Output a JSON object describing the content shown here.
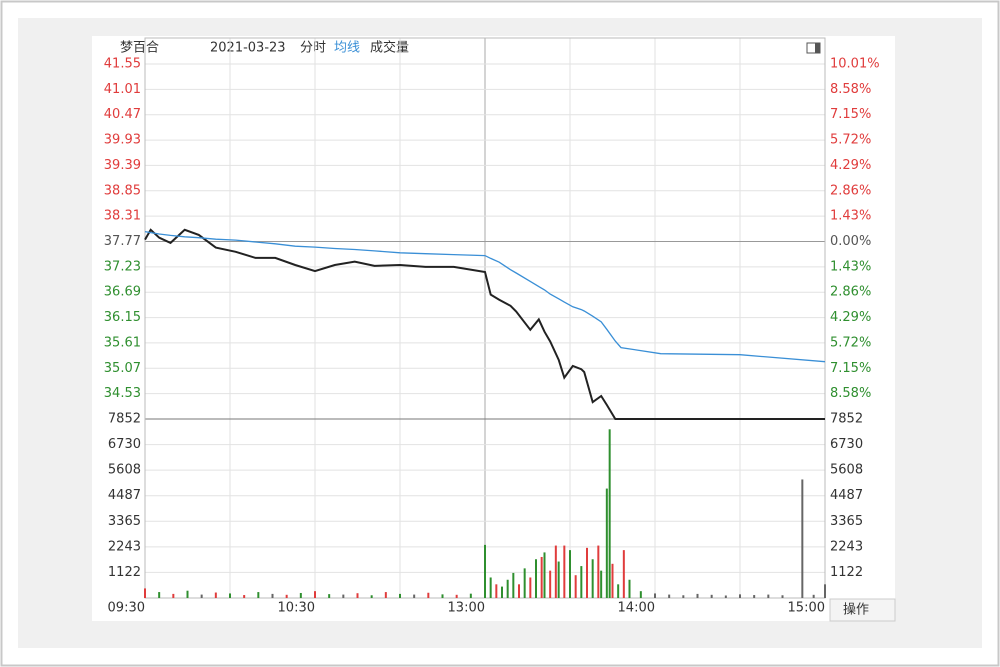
{
  "chart_data": [
    {
      "type": "line",
      "title": "梦百合",
      "date": "2021-03-23",
      "period": "分时",
      "x": [
        0,
        2,
        5,
        9,
        14,
        19,
        25,
        32,
        39,
        46,
        53,
        60,
        67,
        74,
        81,
        90,
        99,
        109,
        120,
        122,
        125,
        129,
        131,
        136,
        139,
        141,
        143,
        146,
        148,
        151,
        154,
        155,
        158,
        161,
        163,
        166,
        168,
        182,
        210,
        240
      ],
      "series": [
        {
          "color": "#222222",
          "values": [
            37.81,
            38.02,
            37.85,
            37.74,
            38.02,
            37.91,
            37.64,
            37.55,
            37.42,
            37.42,
            37.27,
            37.14,
            37.27,
            37.34,
            37.25,
            37.27,
            37.23,
            37.23,
            37.12,
            36.64,
            36.53,
            36.4,
            36.28,
            35.89,
            36.11,
            35.85,
            35.64,
            35.25,
            34.87,
            35.12,
            35.05,
            34.99,
            34.35,
            34.48,
            34.29,
            33.99,
            33.99,
            33.99,
            33.99,
            33.99
          ]
        },
        {
          "name": "均线",
          "color": "#3a8fd6",
          "values": [
            37.98,
            37.96,
            37.93,
            37.9,
            37.87,
            37.85,
            37.82,
            37.8,
            37.76,
            37.72,
            37.67,
            37.65,
            37.62,
            37.6,
            37.57,
            37.53,
            37.51,
            37.49,
            37.47,
            37.41,
            37.33,
            37.17,
            37.1,
            36.92,
            36.81,
            36.74,
            36.65,
            36.55,
            36.48,
            36.38,
            36.32,
            36.29,
            36.18,
            36.06,
            35.9,
            35.65,
            35.51,
            35.38,
            35.36,
            35.21
          ]
        }
      ],
      "xlim": [
        0,
        240
      ],
      "xticks": [
        {
          "value": 0,
          "label": "09:30"
        },
        {
          "value": 30,
          "label": null
        },
        {
          "value": 60,
          "label": "10:30"
        },
        {
          "value": 90,
          "label": null
        },
        {
          "value": 120,
          "label": "13:00"
        },
        {
          "value": 150,
          "label": null
        },
        {
          "value": 180,
          "label": "14:00"
        },
        {
          "value": 210,
          "label": null
        },
        {
          "value": 240,
          "label": "15:00"
        }
      ],
      "ylim": [
        33.99,
        41.55
      ],
      "yticks": [
        41.55,
        41.01,
        40.47,
        39.93,
        39.39,
        38.85,
        38.31,
        37.77,
        37.23,
        36.69,
        36.15,
        35.61,
        35.07,
        34.53
      ],
      "y2lim": [
        -10.01,
        10.01
      ],
      "y2ticks": [
        {
          "value": 10.01,
          "label": "10.01%"
        },
        {
          "value": 8.58,
          "label": "8.58%"
        },
        {
          "value": 7.15,
          "label": "7.15%"
        },
        {
          "value": 5.72,
          "label": "5.72%"
        },
        {
          "value": 4.29,
          "label": "4.29%"
        },
        {
          "value": 2.86,
          "label": "2.86%"
        },
        {
          "value": 1.43,
          "label": "1.43%"
        },
        {
          "value": 0,
          "label": "0.00%"
        },
        {
          "value": -1.43,
          "label": "1.43%"
        },
        {
          "value": -2.86,
          "label": "2.86%"
        },
        {
          "value": -4.29,
          "label": "4.29%"
        },
        {
          "value": -5.72,
          "label": "5.72%"
        },
        {
          "value": -7.15,
          "label": "7.15%"
        },
        {
          "value": -8.58,
          "label": "8.58%"
        }
      ],
      "up_color": "#e03c3c",
      "down_color": "#2f8f2f",
      "flat_color": "#555555",
      "grid": true
    },
    {
      "type": "bar",
      "series": [
        {
          "name": "成交量",
          "x": [
            0,
            5,
            10,
            15,
            20,
            25,
            30,
            35,
            40,
            45,
            50,
            55,
            60,
            65,
            70,
            75,
            80,
            85,
            90,
            95,
            100,
            105,
            110,
            115,
            120,
            122,
            124,
            126,
            128,
            130,
            132,
            134,
            136,
            138,
            140,
            141,
            143,
            145,
            146,
            148,
            150,
            152,
            154,
            156,
            158,
            160,
            161,
            163,
            164,
            165,
            167,
            169,
            171,
            175,
            180,
            185,
            190,
            195,
            200,
            205,
            210,
            215,
            220,
            225,
            232,
            236,
            240
          ],
          "values": [
            420,
            260,
            180,
            320,
            150,
            240,
            200,
            130,
            260,
            180,
            140,
            220,
            300,
            170,
            150,
            210,
            120,
            260,
            180,
            150,
            230,
            160,
            140,
            190,
            2330,
            900,
            600,
            500,
            800,
            1100,
            600,
            1300,
            900,
            1700,
            1800,
            2000,
            1200,
            2300,
            1600,
            2300,
            2100,
            1000,
            1400,
            2200,
            1700,
            2300,
            1200,
            4800,
            7400,
            1500,
            600,
            2100,
            800,
            300,
            200,
            150,
            120,
            180,
            140,
            110,
            160,
            130,
            150,
            120,
            5200,
            140,
            600
          ],
          "colors": [
            "#e03c3c",
            "#2f8f2f",
            "#e03c3c",
            "#2f8f2f",
            "#666666",
            "#e03c3c",
            "#2f8f2f",
            "#e03c3c",
            "#2f8f2f",
            "#666666",
            "#e03c3c",
            "#2f8f2f",
            "#e03c3c",
            "#2f8f2f",
            "#666666",
            "#e03c3c",
            "#2f8f2f",
            "#e03c3c",
            "#2f8f2f",
            "#666666",
            "#e03c3c",
            "#2f8f2f",
            "#e03c3c",
            "#2f8f2f",
            "#2f8f2f",
            "#2f8f2f",
            "#e03c3c",
            "#2f8f2f",
            "#2f8f2f",
            "#2f8f2f",
            "#e03c3c",
            "#2f8f2f",
            "#e03c3c",
            "#2f8f2f",
            "#e03c3c",
            "#2f8f2f",
            "#e03c3c",
            "#e03c3c",
            "#2f8f2f",
            "#e03c3c",
            "#2f8f2f",
            "#e03c3c",
            "#2f8f2f",
            "#e03c3c",
            "#2f8f2f",
            "#e03c3c",
            "#2f8f2f",
            "#2f8f2f",
            "#2f8f2f",
            "#e03c3c",
            "#2f8f2f",
            "#e03c3c",
            "#2f8f2f",
            "#2f8f2f",
            "#666666",
            "#666666",
            "#666666",
            "#666666",
            "#666666",
            "#666666",
            "#666666",
            "#666666",
            "#666666",
            "#666666",
            "#666666",
            "#666666",
            "#666666"
          ]
        }
      ],
      "ylim": [
        0,
        7852
      ],
      "yticks": [
        7852,
        6730,
        5608,
        4487,
        3365,
        2243,
        1122
      ]
    }
  ],
  "controls": {
    "button": "操作"
  }
}
